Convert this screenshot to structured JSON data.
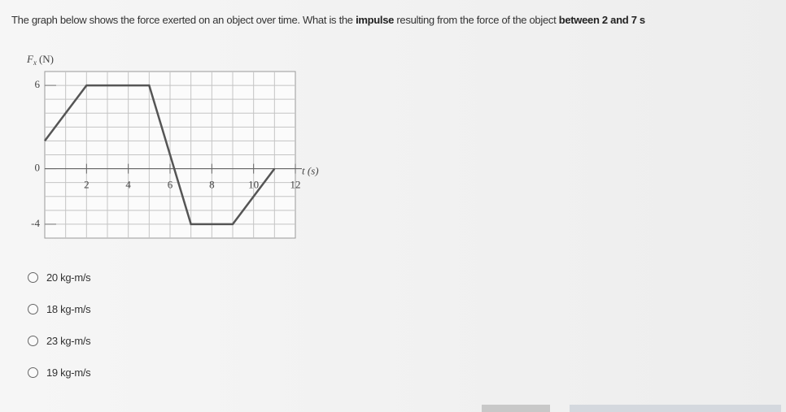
{
  "question": {
    "parts": [
      {
        "text": "The graph below shows the force exerted on an object over time.  What is the ",
        "bold": false
      },
      {
        "text": "impulse",
        "bold": true
      },
      {
        "text": " resulting from the force of the object ",
        "bold": false
      },
      {
        "text": "between 2 and 7 s",
        "bold": true
      }
    ]
  },
  "chart_data": {
    "type": "line",
    "y_label": {
      "symbol": "F",
      "subscript": "x",
      "unit": "(N)"
    },
    "x_label": "t (s)",
    "x": [
      0,
      2,
      5,
      7,
      9,
      11
    ],
    "series": [
      {
        "color": "#555555",
        "values": [
          2,
          6,
          6,
          -4,
          -4,
          0
        ]
      }
    ],
    "xlim": [
      0,
      12
    ],
    "ylim": [
      -5,
      7
    ],
    "xticks": [
      2,
      4,
      6,
      8,
      10,
      12
    ],
    "yticks": [
      -4,
      0,
      6
    ],
    "grid": true
  },
  "options": [
    "20 kg-m/s",
    "18 kg-m/s",
    "23 kg-m/s",
    "19 kg-m/s"
  ]
}
